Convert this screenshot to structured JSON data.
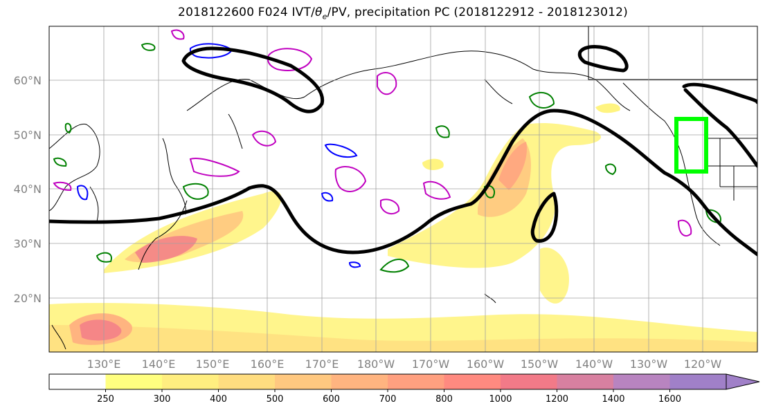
{
  "title": {
    "prefix": "2018122600 F024 IVT/",
    "theta_sub": "e",
    "suffix": "/PV, precipitation PC (2018122912 - 2018123012)"
  },
  "map": {
    "projection": "PlateCarree",
    "lon_range_east": [
      120,
      250
    ],
    "lat_range": [
      10,
      70
    ],
    "gridlines": true,
    "lat_labels": [
      "60°N",
      "50°N",
      "40°N",
      "30°N",
      "20°N"
    ],
    "lon_labels": [
      "130°E",
      "140°E",
      "150°E",
      "160°E",
      "170°E",
      "180°W",
      "170°W",
      "160°W",
      "150°W",
      "140°W",
      "130°W",
      "120°W"
    ],
    "target_box_color": "#00ff00",
    "contour_colors": {
      "theta_e": "#000000",
      "pv_high": "#c000c0",
      "pv_low": "#0000ff",
      "precip": "#008000"
    }
  },
  "colorbar": {
    "levels": [
      "250",
      "300",
      "400",
      "500",
      "600",
      "700",
      "800",
      "1000",
      "1200",
      "1400",
      "1600"
    ],
    "colors": [
      "#ffffff",
      "#ffff80",
      "#ffee80",
      "#ffdd80",
      "#ffc880",
      "#ffb480",
      "#ffa080",
      "#ff8a80",
      "#f27a88",
      "#d880a0",
      "#b884c0",
      "#a080c8"
    ]
  }
}
